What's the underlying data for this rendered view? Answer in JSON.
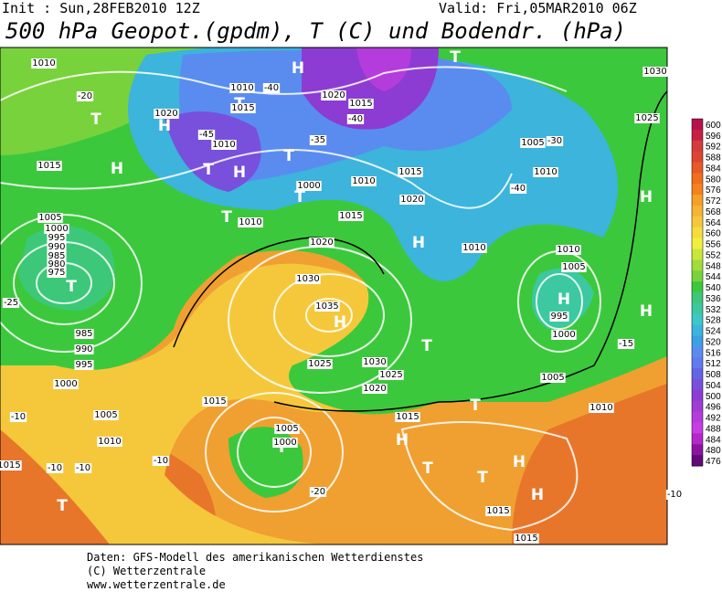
{
  "header": {
    "init": "Init : Sun,28FEB2010 12Z",
    "valid": "Valid: Fri,05MAR2010 06Z",
    "title": "500 hPa Geopot.(gpdm), T (C) und Bodendr. (hPa)"
  },
  "map": {
    "labels": [
      "T",
      "T",
      "T",
      "H",
      "H",
      "H",
      "H",
      "T",
      "T",
      "T",
      "T",
      "H",
      "T",
      "H",
      "H",
      "H",
      "H",
      "T",
      "T",
      "H",
      "H",
      "T",
      "T",
      "H",
      "T",
      "T",
      "1010",
      "-20",
      "1020",
      "1010",
      "-40",
      "1015",
      "1020",
      "-45",
      "1010",
      "1015",
      "1005",
      "1000",
      "995",
      "990",
      "985",
      "980",
      "975",
      "-25",
      "985",
      "990",
      "995",
      "1000",
      "1005",
      "1010",
      "1015",
      "1030",
      "1035",
      "1025",
      "1030",
      "1020",
      "1025",
      "1015",
      "1010",
      "1005",
      "-30",
      "-40",
      "1010",
      "1005",
      "995",
      "1000",
      "1005",
      "1010",
      "-15",
      "-10",
      "-10",
      "1015",
      "1015",
      "-20",
      "1000",
      "1005",
      "-10",
      "-10",
      "-10",
      "1015",
      "1030",
      "1025",
      "1015",
      "1020",
      "1010",
      "1015",
      "1020",
      "1010",
      "1000",
      "1010",
      "-35",
      "-40",
      "1015"
    ]
  },
  "colorbar": {
    "labels": [
      600,
      596,
      592,
      588,
      584,
      580,
      576,
      572,
      568,
      564,
      560,
      556,
      552,
      548,
      544,
      540,
      536,
      532,
      528,
      524,
      520,
      516,
      512,
      508,
      504,
      500,
      496,
      492,
      488,
      484,
      480,
      476
    ],
    "colors": [
      "#b4144a",
      "#c81e46",
      "#d23c3c",
      "#dc4632",
      "#e65a28",
      "#f06e1e",
      "#f5821e",
      "#f5a028",
      "#f5b432",
      "#f5c83c",
      "#f5dc3c",
      "#f0f03c",
      "#c8e63c",
      "#a0dc3c",
      "#78d23c",
      "#3cc83c",
      "#3cc878",
      "#3cc8a0",
      "#3cc8c8",
      "#3cb4dc",
      "#3ca0e6",
      "#5a8cf0",
      "#6478f0",
      "#6464e6",
      "#7850dc",
      "#8c3cd2",
      "#a03cd2",
      "#b43cdc",
      "#c83ce6",
      "#b428c8",
      "#8c14a0",
      "#640a78"
    ]
  },
  "footer": {
    "lines": [
      "Daten: GFS-Modell des amerikanischen Wetterdienstes",
      "(C) Wetterzentrale",
      "www.wetterzentrale.de"
    ]
  }
}
